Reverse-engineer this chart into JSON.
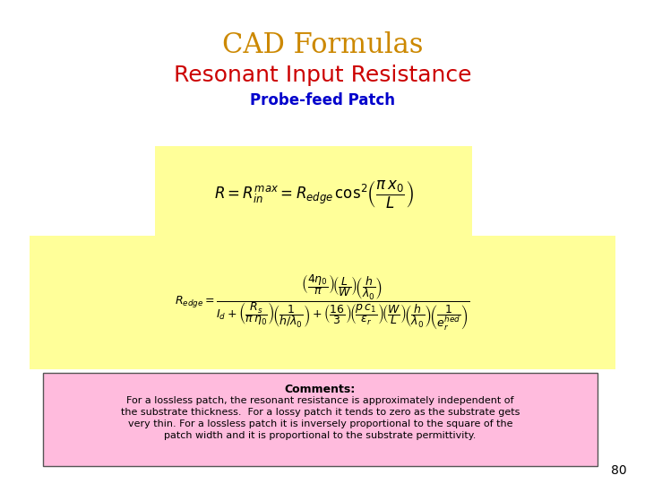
{
  "title": "CAD Formulas",
  "title_color": "#CC8800",
  "subtitle": "Resonant Input Resistance",
  "subtitle_color": "#CC0000",
  "subsubtitle": "Probe-feed Patch",
  "subsubtitle_color": "#0000CC",
  "bg_color": "#FFFFFF",
  "formula1_bg": "#FFFF99",
  "formula2_bg": "#FFFF99",
  "comments_bg": "#FFBBDD",
  "comments_border": "#555555",
  "comments_title": "Comments:",
  "comments_line1": "For a lossless patch, the resonant resistance is approximately independent of",
  "comments_line2": "the substrate thickness.  For a lossy patch it tends to zero as the substrate gets",
  "comments_line3": "very thin. For a lossless patch it is inversely proportional to the square of the",
  "comments_line4": "patch width and it is proportional to the substrate permittivity.",
  "page_number": "80",
  "title_fontsize": 22,
  "subtitle_fontsize": 18,
  "subsubtitle_fontsize": 12,
  "formula1_fontsize": 12,
  "formula2_fontsize": 9,
  "comments_title_fontsize": 9,
  "comments_text_fontsize": 8,
  "pagenumber_fontsize": 10
}
